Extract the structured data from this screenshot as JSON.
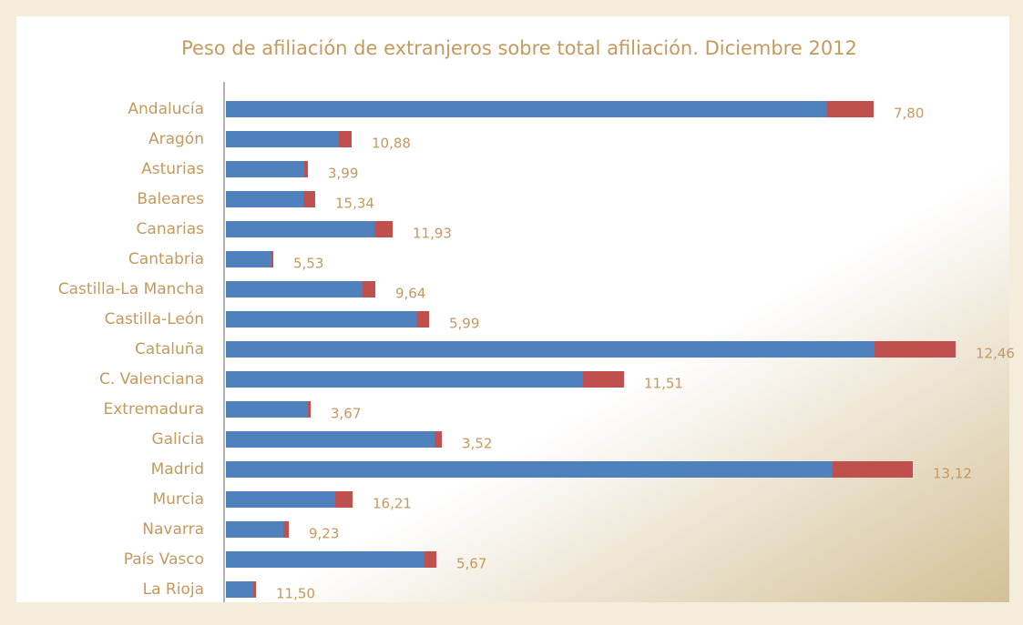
{
  "chart_data": {
    "type": "stacked-bar-horizontal",
    "title": "Peso de afiliación de extranjeros sobre total afiliación. Diciembre 2012",
    "categories": [
      "Andalucía",
      "Aragón",
      "Asturias",
      "Baleares",
      "Canarias",
      "Cantabria",
      "Castilla-La Mancha",
      "Castilla-León",
      "Cataluña",
      "C. Valenciana",
      "Extremadura",
      "Galicia",
      "Madrid",
      "Murcia",
      "Navarra",
      "País Vasco",
      "La Rioja"
    ],
    "series": [
      {
        "color": "#4f81bd",
        "values": [
          660,
          124,
          86,
          85,
          163,
          50,
          150,
          210,
          712,
          392,
          90,
          229,
          666,
          120,
          63,
          218,
          30
        ]
      },
      {
        "color": "#c0504d",
        "values": [
          51,
          14,
          4,
          13,
          20,
          2,
          14,
          13,
          89,
          45,
          3,
          8,
          88,
          19,
          6,
          13,
          3
        ]
      }
    ],
    "value_labels": [
      "7,80",
      "10,88",
      "3,99",
      "15,34",
      "11,93",
      "5,53",
      "9,64",
      "5,99",
      "12,46",
      "11,51",
      "3,67",
      "3,52",
      "13,12",
      "16,21",
      "9,23",
      "5,67",
      "11,50"
    ],
    "xlim": [
      0,
      860
    ]
  }
}
